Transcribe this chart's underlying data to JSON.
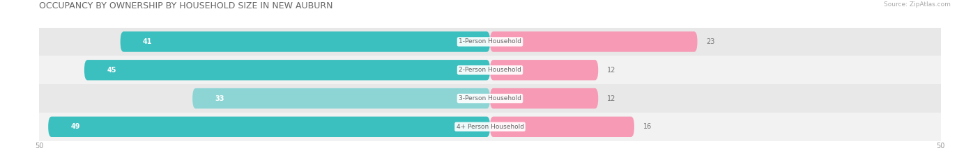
{
  "title": "OCCUPANCY BY OWNERSHIP BY HOUSEHOLD SIZE IN NEW AUBURN",
  "source": "Source: ZipAtlas.com",
  "categories": [
    "1-Person Household",
    "2-Person Household",
    "3-Person Household",
    "4+ Person Household"
  ],
  "owner_values": [
    41,
    45,
    33,
    49
  ],
  "renter_values": [
    23,
    12,
    12,
    16
  ],
  "owner_colors": [
    "#3bbfbf",
    "#3bbfbf",
    "#8dd5d5",
    "#3bbfbf"
  ],
  "renter_color": "#f79ab5",
  "row_bg_colors": [
    "#e8e8e8",
    "#f2f2f2",
    "#e8e8e8",
    "#f2f2f2"
  ],
  "axis_max": 50,
  "category_label_color": "#666666",
  "title_color": "#666666",
  "title_fontsize": 9,
  "figsize": [
    14.06,
    2.33
  ],
  "dpi": 100
}
